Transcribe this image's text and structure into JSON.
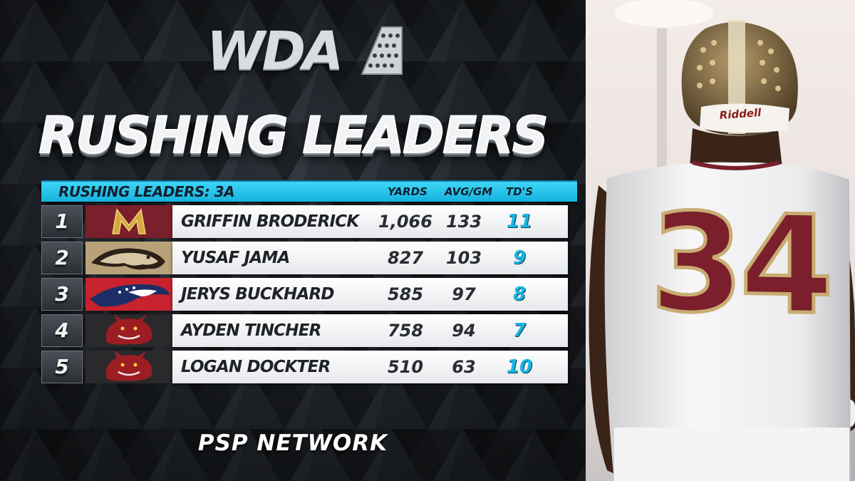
{
  "logo": {
    "text": "WDA",
    "icon": "stars-banner-icon"
  },
  "headline": "RUSHING LEADERS",
  "table": {
    "title": "RUSHING LEADERS: 3A",
    "columns": {
      "yards": "YARDS",
      "avg": "AVG/GM",
      "tds": "TD'S"
    },
    "rows": [
      {
        "rank": "1",
        "name": "GRIFFIN BRODERICK",
        "yards": "1,066",
        "avg": "133",
        "tds": "11",
        "team_icon": "gopher-m-logo-icon"
      },
      {
        "rank": "2",
        "name": "YUSAF JAMA",
        "yards": "827",
        "avg": "103",
        "tds": "9",
        "team_icon": "cougar-logo-icon"
      },
      {
        "rank": "3",
        "name": "JERYS BUCKHARD",
        "yards": "585",
        "avg": "97",
        "tds": "8",
        "team_icon": "patriot-logo-icon"
      },
      {
        "rank": "4",
        "name": "AYDEN TINCHER",
        "yards": "758",
        "avg": "94",
        "tds": "7",
        "team_icon": "dragon-logo-icon"
      },
      {
        "rank": "5",
        "name": "LOGAN DOCKTER",
        "yards": "510",
        "avg": "63",
        "tds": "10",
        "team_icon": "dragon-logo-icon"
      }
    ]
  },
  "footer": "PSP NETWORK",
  "photo": {
    "helmet_brand": "Riddell",
    "jersey_number": "34"
  },
  "colors": {
    "accent": "#17b6e2",
    "maroon": "#7a1f2b",
    "gold": "#c9ad73",
    "background": "#1c1f24"
  }
}
